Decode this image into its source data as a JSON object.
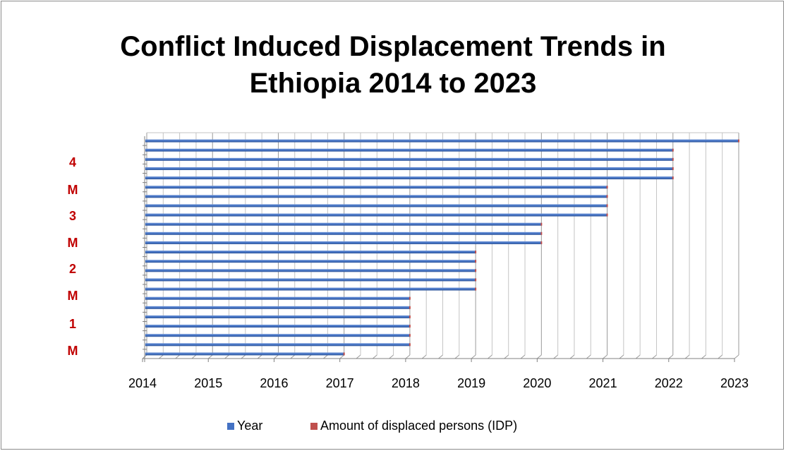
{
  "chart_data": {
    "type": "bar",
    "orientation": "horizontal",
    "title_lines": [
      "Conflict Induced Displacement Trends in",
      "Ethiopia 2014 to 2023"
    ],
    "xlim": [
      2014,
      2023
    ],
    "xticks": [
      "2014",
      "2015",
      "2016",
      "2017",
      "2018",
      "2019",
      "2020",
      "2021",
      "2022",
      "2023"
    ],
    "y_labels": [
      "4",
      "M",
      "3",
      "M",
      "2",
      "M",
      "1",
      "M"
    ],
    "series": [
      {
        "name": "Year",
        "color": "#4472c4",
        "values": [
          2017,
          2018,
          2018,
          2018,
          2018,
          2018,
          2018,
          2019,
          2019,
          2019,
          2019,
          2019,
          2020,
          2020,
          2020,
          2021,
          2021,
          2021,
          2021,
          2022,
          2022,
          2022,
          2022,
          2023
        ]
      },
      {
        "name": "Amount of displaced persons (IDP)",
        "color": "#c0504d",
        "values": []
      }
    ],
    "grid": true,
    "legend_position": "bottom"
  }
}
